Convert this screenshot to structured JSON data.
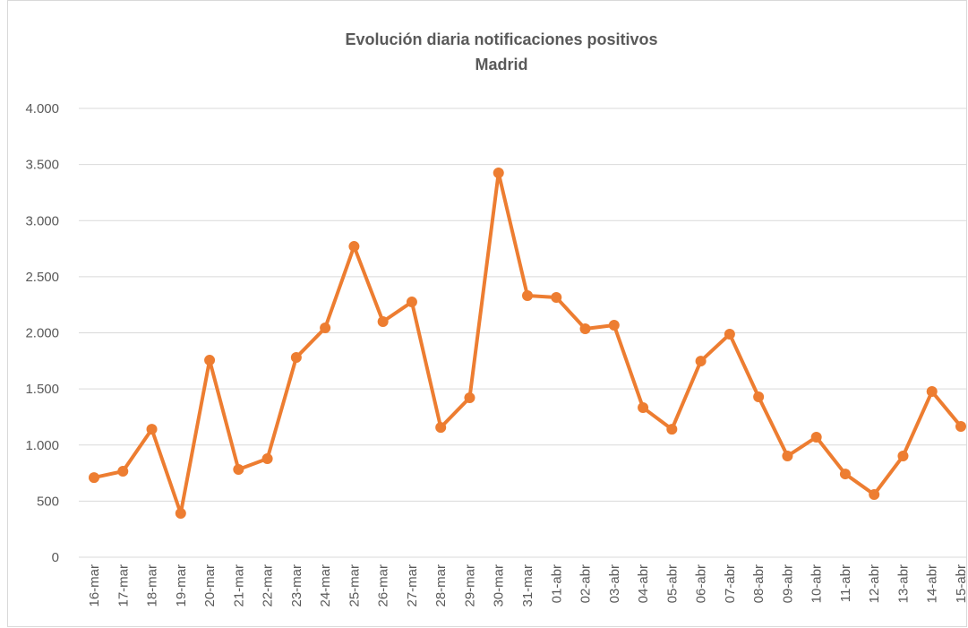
{
  "chart_data": {
    "type": "line",
    "title": "Evolución diaria notificaciones positivos",
    "subtitle": "Madrid",
    "categories": [
      "16-mar",
      "17-mar",
      "18-mar",
      "19-mar",
      "20-mar",
      "21-mar",
      "22-mar",
      "23-mar",
      "24-mar",
      "25-mar",
      "26-mar",
      "27-mar",
      "28-mar",
      "29-mar",
      "30-mar",
      "31-mar",
      "01-abr",
      "02-abr",
      "03-abr",
      "04-abr",
      "05-abr",
      "06-abr",
      "07-abr",
      "08-abr",
      "09-abr",
      "10-abr",
      "11-abr",
      "12-abr",
      "13-abr",
      "14-abr",
      "15-abr"
    ],
    "values": [
      710,
      766,
      1141,
      391,
      1756,
      782,
      878,
      1780,
      2044,
      2770,
      2100,
      2275,
      1157,
      1421,
      3425,
      2331,
      2315,
      2036,
      2068,
      1333,
      1141,
      1748,
      1988,
      1429,
      902,
      1070,
      742,
      559,
      902,
      1477,
      1166
    ],
    "color": "#ED7D31",
    "ylim": [
      0,
      4000
    ],
    "yticks": [
      0,
      500,
      {
        "value": 1000,
        "label": "1.000"
      },
      {
        "value": 1500,
        "label": "1.500"
      },
      {
        "value": 2000,
        "label": "2.000"
      },
      {
        "value": 2500,
        "label": "2.500"
      },
      {
        "value": 3000,
        "label": "3.000"
      },
      {
        "value": 3500,
        "label": "3.500"
      },
      {
        "value": 4000,
        "label": "4.000"
      }
    ],
    "grid": true
  }
}
